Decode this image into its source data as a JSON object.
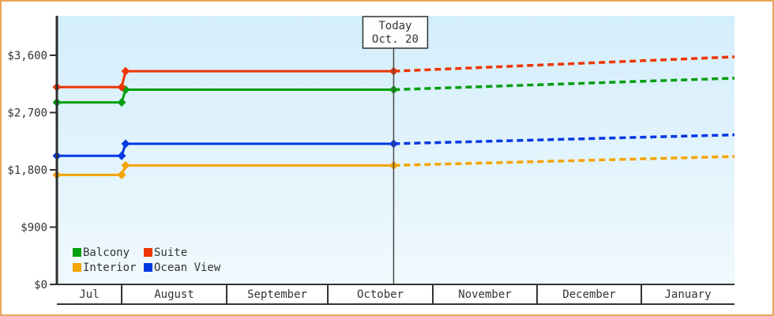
{
  "frame": {
    "border_color": "#eaa55c",
    "background": "#ffffff"
  },
  "chart_data": {
    "type": "line",
    "title": "",
    "y_axis": {
      "tick_values": [
        0,
        900,
        1800,
        2700,
        3600
      ],
      "tick_labels": [
        "$0",
        "$900",
        "$1,800",
        "$2,700",
        "$3,600"
      ],
      "max_value": 4220
    },
    "x_axis": {
      "month_labels": [
        "Jul",
        "August",
        "September",
        "October",
        "November",
        "December",
        "January"
      ],
      "month_boundaries_frac": [
        0,
        0.0956,
        0.2506,
        0.3998,
        0.5548,
        0.7086,
        0.8625,
        1.0
      ]
    },
    "today_marker": {
      "line1": "Today",
      "line2": "Oct. 20",
      "frac": 0.497
    },
    "series": [
      {
        "name": "Balcony",
        "color": "#049e10",
        "history": [
          [
            0,
            2860
          ],
          [
            0.0956,
            2860
          ],
          [
            0.1014,
            3060
          ],
          [
            0.497,
            3060
          ]
        ],
        "forecast": [
          [
            0.497,
            3060
          ],
          [
            1.0,
            3240
          ]
        ]
      },
      {
        "name": "Suite",
        "color": "#ee3505",
        "history": [
          [
            0,
            3100
          ],
          [
            0.0956,
            3100
          ],
          [
            0.1014,
            3350
          ],
          [
            0.497,
            3350
          ]
        ],
        "forecast": [
          [
            0.497,
            3350
          ],
          [
            1.0,
            3575
          ]
        ]
      },
      {
        "name": "Interior",
        "color": "#f5a302",
        "history": [
          [
            0,
            1720
          ],
          [
            0.0956,
            1720
          ],
          [
            0.1014,
            1870
          ],
          [
            0.497,
            1870
          ]
        ],
        "forecast": [
          [
            0.497,
            1870
          ],
          [
            1.0,
            2010
          ]
        ]
      },
      {
        "name": "Ocean View",
        "color": "#0438e3",
        "history": [
          [
            0,
            2020
          ],
          [
            0.0956,
            2020
          ],
          [
            0.1014,
            2210
          ],
          [
            0.497,
            2210
          ]
        ],
        "forecast": [
          [
            0.497,
            2210
          ],
          [
            1.0,
            2350
          ]
        ]
      }
    ],
    "legend": {
      "rows": [
        [
          "Balcony",
          "Suite"
        ],
        [
          "Interior",
          "Ocean View"
        ]
      ]
    },
    "style": {
      "plot_bg_top": "#d3eefb",
      "plot_bg_bottom": "#f0f9fd",
      "axis_color": "#2e2e2e",
      "band_line_color": "#333333",
      "text_color": "#333333",
      "today_line_color": "#4a4a4a",
      "today_box_fill": "#fdfeff",
      "today_box_border": "#333333"
    }
  }
}
